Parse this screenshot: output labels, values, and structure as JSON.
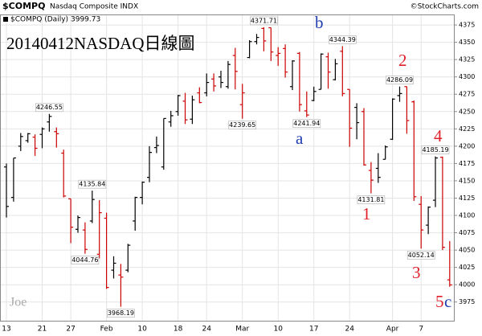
{
  "chart_data": {
    "type": "ohlc",
    "symbol": "$COMPQ",
    "name": "Nasdaq Composite INDX",
    "source": "©StockCharts.com",
    "title": "20140412NASDAQ日線圖",
    "watermark": "Joe",
    "series_name": "$COMPQ (Daily)",
    "up_color": "#000000",
    "down_color": "#cc0000",
    "grid": true,
    "categories": [
      "13",
      null,
      null,
      null,
      null,
      "21",
      null,
      null,
      null,
      "27",
      null,
      null,
      null,
      null,
      "Feb",
      null,
      null,
      null,
      null,
      "10",
      null,
      null,
      null,
      null,
      "18",
      null,
      null,
      null,
      "24",
      null,
      null,
      null,
      null,
      "Mar",
      null,
      null,
      null,
      null,
      "10",
      null,
      null,
      null,
      null,
      "17",
      null,
      null,
      null,
      null,
      "24",
      null,
      null,
      null,
      null,
      null,
      "Apr",
      null,
      null,
      null,
      "7",
      null,
      null,
      null,
      null
    ],
    "open": [
      4170,
      4126,
      4200,
      4208,
      4213,
      4217,
      4235,
      4221,
      4190,
      4124,
      4080,
      4079,
      4092,
      4044,
      4096,
      4021,
      4014,
      4021,
      4092,
      4126,
      4155,
      4198,
      4170,
      4235,
      4250,
      4265,
      4239,
      4277,
      4277,
      4297,
      4300,
      4286,
      4331,
      4260,
      4328,
      4351,
      4370,
      4371,
      4331,
      4341,
      4286,
      4334,
      4251,
      4266,
      4282,
      4329,
      4296,
      4337,
      4282,
      4256,
      4250,
      4165,
      4168,
      4181,
      4210,
      4273,
      4286,
      4264,
      4116,
      4086,
      4122,
      4184,
      4007
    ],
    "high": [
      4175,
      4183,
      4219,
      4219,
      4217,
      4227,
      4246.55,
      4227,
      4195,
      4124,
      4100,
      4090,
      4135.84,
      4122,
      4104,
      4041,
      4030,
      4059,
      4127,
      4149,
      4200,
      4214,
      4240,
      4251,
      4274,
      4277,
      4273,
      4285,
      4305,
      4305,
      4309,
      4323,
      4342,
      4290,
      4353,
      4362,
      4371.71,
      4371,
      4343,
      4347,
      4324,
      4336,
      4279,
      4286,
      4334,
      4335,
      4326,
      4344.39,
      4282,
      4262,
      4255,
      4177,
      4190,
      4201,
      4269,
      4286.09,
      4286,
      4266,
      4128,
      4113,
      4185.19,
      4185,
      4063
    ],
    "low": [
      4097,
      4120,
      4193,
      4205,
      4186,
      4197,
      4221,
      4198,
      4126,
      4060,
      4075,
      4044.76,
      4089,
      4038,
      3994,
      4009,
      3968.19,
      4018,
      4078,
      4116,
      4148,
      4190,
      4166,
      4228,
      4244,
      4232,
      4232,
      4262,
      4272,
      4279,
      4284,
      4283,
      4282,
      4239.65,
      4327,
      4347,
      4337,
      4323,
      4316,
      4299,
      4281,
      4250,
      4241.94,
      4265,
      4282,
      4283,
      4295,
      4272,
      4199,
      4210,
      4172,
      4131.81,
      4147,
      4181,
      4209,
      4264,
      4218,
      4121,
      4052.14,
      4073,
      4112,
      4050,
      3997
    ],
    "close": [
      4113,
      4183,
      4214,
      4218,
      4197,
      4225,
      4243,
      4218,
      4128,
      4083,
      4097,
      4051,
      4123,
      4104,
      3996,
      4031,
      4011,
      4057,
      4126,
      4148,
      4191,
      4201,
      4240,
      4244,
      4273,
      4238,
      4267,
      4263,
      4292,
      4287,
      4292,
      4318,
      4308,
      4277,
      4351,
      4357,
      4352,
      4336,
      4334,
      4307,
      4323,
      4260,
      4245,
      4279,
      4333,
      4307,
      4319,
      4276,
      4226,
      4234,
      4173,
      4151,
      4155,
      4199,
      4268,
      4276,
      4237,
      4127,
      4079,
      4112,
      4183,
      4054,
      3999.73
    ],
    "high_labels": [
      null,
      null,
      null,
      null,
      null,
      null,
      "4246.55",
      null,
      null,
      null,
      null,
      null,
      "4135.84",
      null,
      null,
      null,
      null,
      null,
      null,
      null,
      null,
      null,
      null,
      null,
      null,
      null,
      null,
      null,
      null,
      null,
      null,
      null,
      null,
      null,
      null,
      null,
      "4371.71",
      null,
      null,
      null,
      null,
      null,
      null,
      null,
      null,
      null,
      null,
      "4344.39",
      null,
      null,
      null,
      null,
      null,
      null,
      null,
      "4286.09",
      null,
      null,
      null,
      null,
      "4185.19",
      null,
      null
    ],
    "low_labels": [
      null,
      null,
      null,
      null,
      null,
      null,
      null,
      null,
      null,
      null,
      null,
      "4044.76",
      null,
      null,
      null,
      null,
      "3968.19",
      null,
      null,
      null,
      null,
      null,
      null,
      null,
      null,
      null,
      null,
      null,
      null,
      null,
      null,
      null,
      null,
      "4239.65",
      null,
      null,
      null,
      null,
      null,
      null,
      null,
      null,
      "4241.94",
      null,
      null,
      null,
      null,
      null,
      null,
      null,
      null,
      "4131.81",
      null,
      null,
      null,
      null,
      null,
      null,
      "4052.14",
      null,
      null,
      null,
      null
    ],
    "annotations": [
      {
        "text": "a",
        "color": "#1f3fb0"
      },
      {
        "text": "b",
        "color": "#1f3fb0"
      },
      {
        "text": "1",
        "color": "#e0202a"
      },
      {
        "text": "2",
        "color": "#e0202a"
      },
      {
        "text": "3",
        "color": "#e0202a"
      },
      {
        "text": "4",
        "color": "#e0202a"
      },
      {
        "text": "5",
        "color": "#e0202a"
      },
      {
        "text": "c",
        "color": "#1f3fb0"
      }
    ],
    "ylim": [
      3948,
      4389
    ],
    "yticks": [
      3975,
      4000,
      4025,
      4050,
      4075,
      4100,
      4125,
      4150,
      4175,
      4200,
      4225,
      4250,
      4275,
      4300,
      4325,
      4350,
      4375
    ]
  }
}
